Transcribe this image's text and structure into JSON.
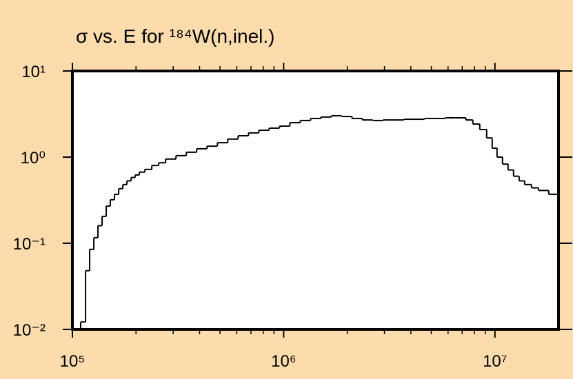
{
  "chart_data": {
    "type": "step",
    "title": "σ vs. E for ¹⁸⁴W(n,inel.)",
    "xscale": "log",
    "yscale": "log",
    "xlim": [
      100000,
      20000000
    ],
    "ylim": [
      0.01,
      10
    ],
    "xticks": [
      {
        "value": 100000,
        "label": "10⁵"
      },
      {
        "value": 1000000,
        "label": "10⁶"
      },
      {
        "value": 10000000,
        "label": "10⁷"
      }
    ],
    "yticks": [
      {
        "value": 0.01,
        "label": "10⁻²"
      },
      {
        "value": 0.1,
        "label": "10⁻¹"
      },
      {
        "value": 1,
        "label": "10⁰"
      },
      {
        "value": 10,
        "label": "10¹"
      }
    ],
    "color": "#000000",
    "x": [
      109400,
      115400,
      120700,
      126300,
      132100,
      138200,
      144600,
      151200,
      158200,
      165600,
      173200,
      181200,
      189600,
      198300,
      207500,
      220300,
      237600,
      256200,
      276200,
      309200,
      346100,
      387500,
      433800,
      485700,
      543700,
      608700,
      681300,
      762800,
      853900,
      955900,
      1070000,
      1198000,
      1341000,
      1502000,
      1681000,
      1882000,
      2107000,
      2358000,
      2640000,
      2956000,
      3309000,
      3704000,
      4147000,
      4642000,
      5197000,
      5818000,
      6513000,
      7291000,
      7862000,
      8477000,
      9138000,
      9703000,
      10230000,
      10860000,
      11540000,
      12250000,
      13020000,
      13820000,
      14900000,
      16070000,
      17980000
    ],
    "values": [
      0.0122,
      0.048,
      0.085,
      0.116,
      0.16,
      0.205,
      0.27,
      0.32,
      0.37,
      0.43,
      0.48,
      0.53,
      0.58,
      0.62,
      0.67,
      0.72,
      0.8,
      0.86,
      0.95,
      1.04,
      1.14,
      1.25,
      1.34,
      1.47,
      1.62,
      1.77,
      1.91,
      2.05,
      2.17,
      2.29,
      2.51,
      2.66,
      2.81,
      2.92,
      3.02,
      2.96,
      2.81,
      2.7,
      2.66,
      2.7,
      2.7,
      2.75,
      2.75,
      2.81,
      2.81,
      2.86,
      2.86,
      2.7,
      2.42,
      2.09,
      1.67,
      1.27,
      1.0,
      0.83,
      0.71,
      0.6,
      0.53,
      0.48,
      0.44,
      0.41,
      0.37
    ]
  }
}
